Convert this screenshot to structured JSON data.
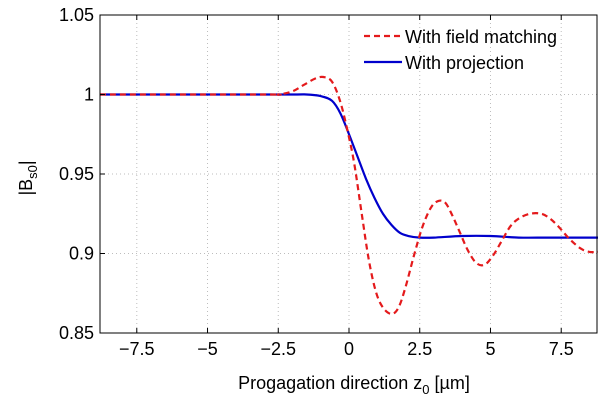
{
  "chart_data": {
    "type": "line",
    "xlabel": "Progagation direction z",
    "xlabel_sub": "0",
    "xlabel_unit": " [µm]",
    "ylabel": "|B",
    "ylabel_sub": "s0",
    "ylabel_end": "|",
    "xlim": [
      -8.8,
      8.8
    ],
    "ylim": [
      0.85,
      1.05
    ],
    "xticks": [
      -7.5,
      -5,
      -2.5,
      0,
      2.5,
      5,
      7.5
    ],
    "xtick_labels": [
      "−7.5",
      "−5",
      "−2.5",
      "0",
      "2.5",
      "5",
      "7.5"
    ],
    "yticks": [
      0.85,
      0.9,
      0.95,
      1,
      1.05
    ],
    "ytick_labels": [
      "0.85",
      "0.9",
      "0.95",
      "1",
      "1.05"
    ],
    "grid": true,
    "legend_position": "top-right",
    "series": [
      {
        "name": "With field matching",
        "color": "#e41a1c",
        "style": "dashed",
        "x": [
          -8.8,
          -3.0,
          -2.5,
          -2.0,
          -1.6,
          -1.2,
          -0.9,
          -0.6,
          -0.3,
          0.0,
          0.2,
          0.45,
          0.7,
          0.95,
          1.2,
          1.5,
          1.75,
          2.0,
          2.3,
          2.6,
          2.9,
          3.15,
          3.4,
          3.65,
          3.9,
          4.2,
          4.5,
          4.8,
          5.1,
          5.4,
          5.7,
          6.0,
          6.4,
          6.8,
          7.1,
          7.4,
          7.8,
          8.2,
          8.5,
          8.8
        ],
        "y": [
          1.0,
          1.0,
          1.0,
          1.002,
          1.006,
          1.01,
          1.011,
          1.008,
          0.995,
          0.973,
          0.955,
          0.925,
          0.896,
          0.876,
          0.866,
          0.862,
          0.866,
          0.879,
          0.899,
          0.917,
          0.929,
          0.933,
          0.932,
          0.924,
          0.914,
          0.902,
          0.894,
          0.893,
          0.899,
          0.908,
          0.917,
          0.922,
          0.925,
          0.925,
          0.922,
          0.917,
          0.909,
          0.903,
          0.901,
          0.901
        ]
      },
      {
        "name": "With projection",
        "color": "#0000cc",
        "style": "solid",
        "x": [
          -8.8,
          -2.5,
          -1.5,
          -1.0,
          -0.6,
          -0.3,
          0.0,
          0.3,
          0.6,
          0.9,
          1.2,
          1.5,
          1.8,
          2.1,
          2.5,
          3.0,
          4.0,
          5.0,
          6.0,
          7.0,
          8.0,
          8.8
        ],
        "y": [
          1.0,
          1.0,
          1.0,
          0.999,
          0.996,
          0.988,
          0.975,
          0.961,
          0.947,
          0.935,
          0.925,
          0.918,
          0.913,
          0.911,
          0.91,
          0.91,
          0.911,
          0.911,
          0.91,
          0.91,
          0.91,
          0.91
        ]
      }
    ]
  }
}
